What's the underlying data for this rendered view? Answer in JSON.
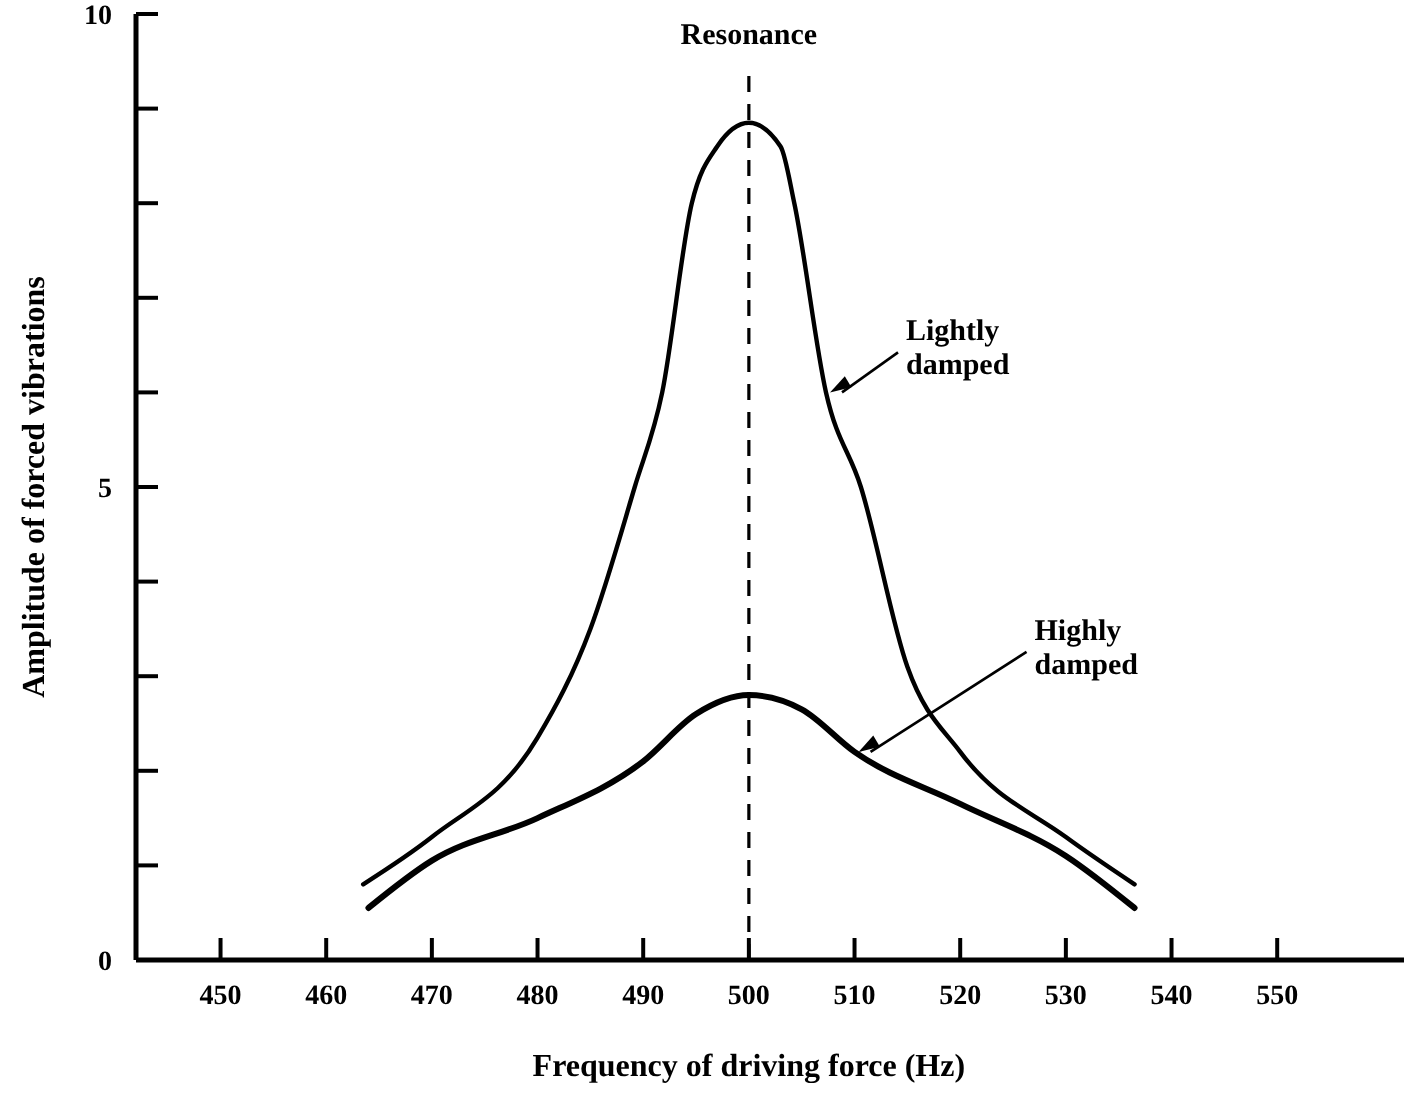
{
  "chart_data": {
    "type": "line",
    "xlabel": "Frequency of driving force (Hz)",
    "ylabel": "Amplitude of forced vibrations",
    "xlim": [
      442,
      562
    ],
    "ylim": [
      0,
      10
    ],
    "xticks": [
      450,
      460,
      470,
      480,
      490,
      500,
      510,
      520,
      530,
      540,
      550
    ],
    "yticks": [
      0,
      {
        "value": 1,
        "label": null
      },
      {
        "value": 2,
        "label": null
      },
      {
        "value": 3,
        "label": null
      },
      {
        "value": 4,
        "label": null
      },
      5,
      {
        "value": 6,
        "label": null
      },
      {
        "value": 7,
        "label": null
      },
      {
        "value": 8,
        "label": null
      },
      {
        "value": 9,
        "label": null
      },
      10
    ],
    "series": [
      {
        "name": "Lightly damped",
        "color": "#000000",
        "x": [
          463.5,
          470,
          480,
          485,
          489.2,
          491.8,
          494.6,
          497,
          500,
          503,
          504.3,
          507.3,
          510.6,
          515,
          520,
          530,
          536.5
        ],
        "values": [
          0.8,
          1.3,
          2.35,
          3.5,
          5,
          6,
          8,
          8.6,
          8.85,
          8.6,
          8,
          6,
          5,
          3.1,
          2.2,
          1.3,
          0.8
        ]
      },
      {
        "name": "Highly damped",
        "color": "#000000",
        "x": [
          464,
          470,
          480,
          490,
          495,
          500,
          505,
          510,
          520,
          530,
          536.5
        ],
        "values": [
          0.55,
          1.05,
          1.5,
          2.1,
          2.6,
          2.8,
          2.65,
          2.2,
          1.65,
          1.1,
          0.55
        ]
      }
    ],
    "ref_lines": [
      {
        "axis": "x",
        "value": 500,
        "label": "Resonance",
        "line_style": "dashed",
        "color": "#000000"
      }
    ],
    "grid": false,
    "marker": "none",
    "line_style": "solid"
  }
}
